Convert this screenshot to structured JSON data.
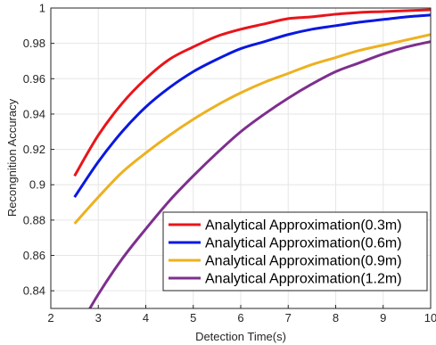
{
  "chart_data": {
    "type": "line",
    "title": "",
    "xlabel": "Detection Time(s)",
    "ylabel": "Recongnition Accuracy",
    "xlim": [
      2,
      10
    ],
    "ylim": [
      0.83,
      1.0
    ],
    "xticks": [
      "2",
      "3",
      "4",
      "5",
      "6",
      "7",
      "8",
      "9",
      "10"
    ],
    "yticks": [
      "0.84",
      "0.86",
      "0.88",
      "0.9",
      "0.92",
      "0.94",
      "0.96",
      "0.98",
      "1"
    ],
    "grid": true,
    "legend_position": "bottom-right",
    "series": [
      {
        "name": "Analytical Approximation(0.3m)",
        "color": "#e8151b",
        "x": [
          2.5,
          3,
          3.5,
          4,
          4.5,
          5,
          5.5,
          6,
          6.5,
          7,
          7.5,
          8,
          8.5,
          9,
          9.5,
          10
        ],
        "y": [
          0.905,
          0.928,
          0.946,
          0.96,
          0.971,
          0.978,
          0.984,
          0.988,
          0.991,
          0.994,
          0.995,
          0.9965,
          0.9975,
          0.998,
          0.9985,
          0.999
        ]
      },
      {
        "name": "Analytical Approximation(0.6m)",
        "color": "#0a18e0",
        "x": [
          2.5,
          3,
          3.5,
          4,
          4.5,
          5,
          5.5,
          6,
          6.5,
          7,
          7.5,
          8,
          8.5,
          9,
          9.5,
          10
        ],
        "y": [
          0.893,
          0.913,
          0.93,
          0.944,
          0.955,
          0.964,
          0.971,
          0.977,
          0.981,
          0.985,
          0.988,
          0.99,
          0.992,
          0.9935,
          0.995,
          0.996
        ]
      },
      {
        "name": "Analytical Approximation(0.9m)",
        "color": "#edb120",
        "x": [
          2.5,
          3,
          3.5,
          4,
          4.5,
          5,
          5.5,
          6,
          6.5,
          7,
          7.5,
          8,
          8.5,
          9,
          9.5,
          10
        ],
        "y": [
          0.878,
          0.893,
          0.907,
          0.918,
          0.928,
          0.937,
          0.945,
          0.952,
          0.958,
          0.963,
          0.968,
          0.972,
          0.976,
          0.979,
          0.982,
          0.985
        ]
      },
      {
        "name": "Analytical Approximation(1.2m)",
        "color": "#7e2f8e",
        "x": [
          2.5,
          3,
          3.5,
          4,
          4.5,
          5,
          5.5,
          6,
          6.5,
          7,
          7.5,
          8,
          8.5,
          9,
          9.5,
          10
        ],
        "y": [
          0.815,
          0.838,
          0.858,
          0.875,
          0.891,
          0.905,
          0.918,
          0.93,
          0.94,
          0.949,
          0.957,
          0.964,
          0.969,
          0.974,
          0.978,
          0.981
        ]
      }
    ]
  }
}
